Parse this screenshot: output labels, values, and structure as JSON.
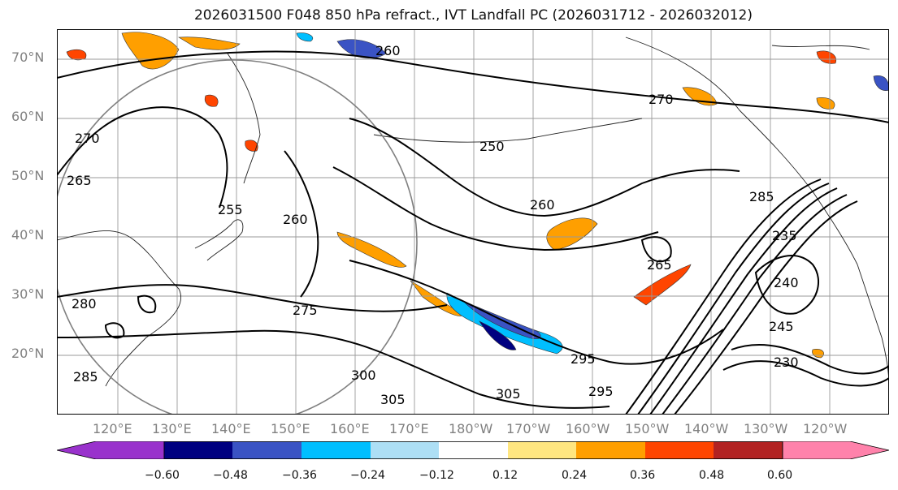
{
  "title": "2026031500 F048 850 hPa refract., IVT Landfall PC (2026031712 - 2026032012)",
  "lat_labels": [
    "70°N",
    "60°N",
    "50°N",
    "40°N",
    "30°N",
    "20°N"
  ],
  "lon_labels": [
    "120°E",
    "130°E",
    "140°E",
    "150°E",
    "160°E",
    "170°E",
    "180°W",
    "170°W",
    "160°W",
    "150°W",
    "140°W",
    "130°W",
    "120°W"
  ],
  "contour_labels": [
    "260",
    "270",
    "270",
    "265",
    "250",
    "260",
    "255",
    "260",
    "265",
    "275",
    "280",
    "285",
    "295",
    "305",
    "300",
    "305",
    "295",
    "285",
    "235",
    "240",
    "245",
    "230"
  ],
  "colorbar": {
    "ticks": [
      "−0.60",
      "−0.48",
      "−0.36",
      "−0.24",
      "−0.12",
      "0.12",
      "0.24",
      "0.36",
      "0.48",
      "0.60"
    ],
    "colors": [
      "#9932CC",
      "#000080",
      "#3A53C4",
      "#00BFFF",
      "#ADDFF5",
      "#FFFFFF",
      "#FFE680",
      "#FF9F00",
      "#FF4500",
      "#B22222",
      "#FF82AB"
    ]
  }
}
